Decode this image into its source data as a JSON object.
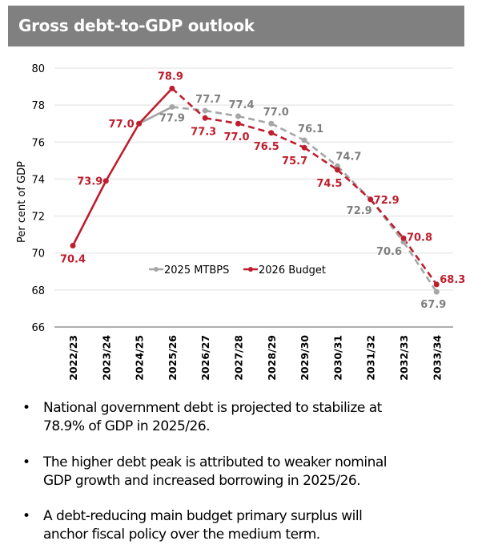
{
  "header": {
    "title": "Gross debt-to-GDP outlook"
  },
  "colors": {
    "budget": "#BE1E2D",
    "mtbps": "#A6A6A6",
    "mtbps_label": "#7F7F7F",
    "grid": "#E6E6E6",
    "axis": "#7F7F7F"
  },
  "chart_data": {
    "type": "line",
    "title": "Gross debt-to-GDP outlook",
    "xlabel": "",
    "ylabel": "Per cent of GDP",
    "ylim": [
      66,
      80
    ],
    "yticks": [
      66,
      68,
      70,
      72,
      74,
      76,
      78,
      80
    ],
    "grid": true,
    "legend_position": "center",
    "categories": [
      "2022/23",
      "2023/24",
      "2024/25",
      "2025/26",
      "2026/27",
      "2027/28",
      "2028/29",
      "2029/30",
      "2030/31",
      "2031/32",
      "2032/33",
      "2033/34"
    ],
    "series": [
      {
        "name": "2025 MTBPS",
        "values": [
          null,
          null,
          77.0,
          77.9,
          77.7,
          77.4,
          77.0,
          76.1,
          74.7,
          72.9,
          70.6,
          67.9
        ],
        "labels": [
          null,
          null,
          null,
          "77.9",
          "77.7",
          "77.4",
          "77.0",
          "76.1",
          "74.7",
          "72.9",
          "70.6",
          "67.9"
        ],
        "dashed_from_index": 3
      },
      {
        "name": "2026 Budget",
        "values": [
          70.4,
          73.9,
          77.0,
          78.9,
          77.3,
          77.0,
          76.5,
          75.7,
          74.5,
          72.9,
          70.8,
          68.3
        ],
        "labels": [
          "70.4",
          "73.9",
          "77.0",
          "78.9",
          "77.3",
          "77.0",
          "76.5",
          "75.7",
          "74.5",
          "72.9",
          "70.8",
          "68.3"
        ],
        "dashed_from_index": 3
      }
    ]
  },
  "bullets": [
    {
      "lines": [
        "National government debt is projected to stabilize at",
        "78.9% of GDP in 2025/26."
      ]
    },
    {
      "lines": [
        "The higher debt peak is attributed to weaker nominal",
        "GDP growth and increased borrowing in 2025/26."
      ]
    },
    {
      "lines": [
        "A debt-reducing main budget primary surplus will",
        "anchor fiscal policy over the medium term."
      ]
    }
  ],
  "bullet_symbol": "•"
}
